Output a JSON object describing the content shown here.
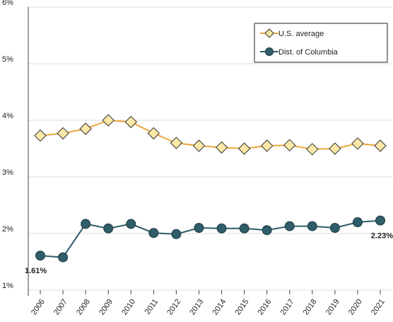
{
  "chart_data": {
    "type": "line",
    "categories": [
      "2006",
      "2007",
      "2008",
      "2009",
      "2010",
      "2011",
      "2012",
      "2013",
      "2014",
      "2015",
      "2016",
      "2017",
      "2018",
      "2019",
      "2020",
      "2021"
    ],
    "series": [
      {
        "name": "U.S. average",
        "color": "#e9a53d",
        "marker_fill": "#fbe8a6",
        "marker": "diamond",
        "values": [
          3.73,
          3.77,
          3.85,
          4.0,
          3.97,
          3.77,
          3.6,
          3.55,
          3.52,
          3.5,
          3.55,
          3.56,
          3.49,
          3.5,
          3.59,
          3.55
        ]
      },
      {
        "name": "Dist. of Columbia",
        "color": "#2f5d69",
        "marker_fill": "#2f5d69",
        "marker": "circle",
        "values": [
          1.61,
          1.58,
          2.17,
          2.09,
          2.17,
          2.01,
          1.99,
          2.1,
          2.09,
          2.09,
          2.06,
          2.13,
          2.13,
          2.1,
          2.2,
          2.23
        ],
        "value_labels": [
          "1.61%",
          null,
          null,
          null,
          null,
          null,
          null,
          null,
          null,
          null,
          null,
          null,
          null,
          null,
          null,
          "2.23%"
        ]
      }
    ],
    "ylim": [
      1,
      6
    ],
    "yticks": [
      {
        "value": 1,
        "label": "1%"
      },
      {
        "value": 2,
        "label": "2%"
      },
      {
        "value": 3,
        "label": "3%"
      },
      {
        "value": 4,
        "label": "4%"
      },
      {
        "value": 5,
        "label": "5%"
      },
      {
        "value": 6,
        "label": "6%"
      }
    ],
    "grid": true,
    "legend": "top-right"
  }
}
